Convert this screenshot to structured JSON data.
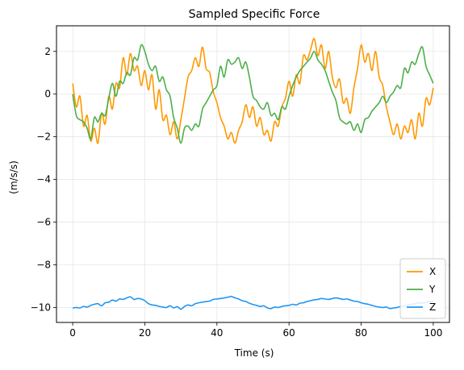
{
  "chart_data": {
    "type": "line",
    "title": "Sampled Specific Force",
    "xlabel": "Time (s)",
    "ylabel": "(m/s/s)",
    "xlim": [
      -4.5,
      104.5
    ],
    "ylim": [
      -10.7,
      3.2
    ],
    "xticks": [
      0,
      20,
      40,
      60,
      80,
      100
    ],
    "xtick_labels": [
      "0",
      "20",
      "40",
      "60",
      "80",
      "100"
    ],
    "yticks": [
      2,
      0,
      -2,
      -4,
      -6,
      -8,
      -10
    ],
    "ytick_labels": [
      "2",
      "0",
      "−2",
      "−4",
      "−6",
      "−8",
      "−10"
    ],
    "grid": true,
    "legend_position": "lower-right",
    "series": [
      {
        "name": "X",
        "color": "#ff9900",
        "x": [
          0,
          1,
          2,
          3,
          4,
          5,
          6,
          7,
          8,
          9,
          10,
          11,
          12,
          13,
          14,
          15,
          16,
          17,
          18,
          19,
          20,
          21,
          22,
          23,
          24,
          25,
          26,
          27,
          28,
          29,
          30,
          31,
          32,
          33,
          34,
          35,
          36,
          37,
          38,
          39,
          40,
          41,
          42,
          43,
          44,
          45,
          46,
          47,
          48,
          49,
          50,
          51,
          52,
          53,
          54,
          55,
          56,
          57,
          58,
          59,
          60,
          61,
          62,
          63,
          64,
          65,
          66,
          67,
          68,
          69,
          70,
          71,
          72,
          73,
          74,
          75,
          76,
          77,
          78,
          79,
          80,
          81,
          82,
          83,
          84,
          85,
          86,
          87,
          88,
          89,
          90,
          91,
          92,
          93,
          94,
          95,
          96,
          97,
          98,
          99,
          100
        ],
        "values": [
          0.5,
          -0.6,
          -0.1,
          -1.5,
          -1.0,
          -2.2,
          -1.6,
          -2.3,
          -0.9,
          -1.4,
          -0.1,
          -0.7,
          0.5,
          0.3,
          1.7,
          0.9,
          1.9,
          1.1,
          1.3,
          0.4,
          1.1,
          0.2,
          0.9,
          -0.7,
          0.2,
          -1.2,
          -1.0,
          -1.9,
          -1.3,
          -2.1,
          -1.2,
          -0.2,
          0.8,
          1.1,
          1.7,
          1.3,
          2.2,
          1.2,
          1.0,
          0.1,
          -0.4,
          -1.1,
          -1.5,
          -2.1,
          -1.8,
          -2.3,
          -1.7,
          -1.3,
          -0.5,
          -1.1,
          -0.6,
          -1.5,
          -1.1,
          -1.9,
          -1.7,
          -2.2,
          -1.3,
          -1.5,
          -0.6,
          -0.2,
          0.6,
          -0.1,
          0.9,
          0.5,
          1.8,
          1.6,
          2.1,
          2.6,
          1.8,
          2.3,
          1.2,
          2.0,
          0.8,
          0.3,
          0.7,
          -0.4,
          -0.2,
          -0.9,
          0.3,
          1.2,
          2.3,
          1.5,
          1.9,
          1.1,
          2.0,
          0.8,
          0.4,
          -0.6,
          -1.3,
          -1.9,
          -1.4,
          -2.1,
          -1.5,
          -1.8,
          -1.2,
          -2.1,
          -0.9,
          -1.5,
          -0.2,
          -0.5,
          0.3
        ]
      },
      {
        "name": "Y",
        "color": "#4daf4a",
        "x": [
          0,
          1,
          2,
          3,
          4,
          5,
          6,
          7,
          8,
          9,
          10,
          11,
          12,
          13,
          14,
          15,
          16,
          17,
          18,
          19,
          20,
          21,
          22,
          23,
          24,
          25,
          26,
          27,
          28,
          29,
          30,
          31,
          32,
          33,
          34,
          35,
          36,
          37,
          38,
          39,
          40,
          41,
          42,
          43,
          44,
          45,
          46,
          47,
          48,
          49,
          50,
          51,
          52,
          53,
          54,
          55,
          56,
          57,
          58,
          59,
          60,
          61,
          62,
          63,
          64,
          65,
          66,
          67,
          68,
          69,
          70,
          71,
          72,
          73,
          74,
          75,
          76,
          77,
          78,
          79,
          80,
          81,
          82,
          83,
          84,
          85,
          86,
          87,
          88,
          89,
          90,
          91,
          92,
          93,
          94,
          95,
          96,
          97,
          98,
          99,
          100
        ],
        "values": [
          0.0,
          -1.0,
          -1.2,
          -1.3,
          -1.6,
          -2.1,
          -1.1,
          -1.3,
          -0.9,
          -1.0,
          -0.2,
          0.5,
          -0.1,
          0.6,
          0.5,
          1.0,
          0.9,
          1.7,
          1.6,
          2.3,
          2.0,
          1.4,
          1.1,
          1.3,
          0.6,
          0.8,
          0.2,
          -0.1,
          -1.1,
          -1.6,
          -2.3,
          -1.6,
          -1.5,
          -1.7,
          -1.4,
          -1.5,
          -0.7,
          -0.4,
          -0.1,
          0.2,
          0.4,
          1.3,
          0.8,
          1.6,
          1.4,
          1.5,
          1.7,
          1.2,
          1.5,
          0.8,
          -0.1,
          -0.3,
          -0.6,
          -0.7,
          -0.4,
          -1.0,
          -0.9,
          -1.2,
          -0.6,
          -0.7,
          -0.1,
          0.4,
          0.8,
          1.1,
          1.3,
          1.5,
          1.7,
          2.0,
          1.6,
          1.4,
          1.1,
          0.6,
          0.1,
          -0.3,
          -1.1,
          -1.3,
          -1.4,
          -1.3,
          -1.7,
          -1.4,
          -1.8,
          -1.2,
          -1.1,
          -0.8,
          -0.6,
          -0.4,
          -0.1,
          -0.4,
          -0.1,
          0.1,
          0.4,
          0.3,
          1.2,
          1.0,
          1.5,
          1.4,
          1.9,
          2.2,
          1.3,
          0.9,
          0.5
        ]
      },
      {
        "name": "Z",
        "color": "#2196f3",
        "x": [
          0,
          1,
          2,
          3,
          4,
          5,
          6,
          7,
          8,
          9,
          10,
          11,
          12,
          13,
          14,
          15,
          16,
          17,
          18,
          19,
          20,
          21,
          22,
          23,
          24,
          25,
          26,
          27,
          28,
          29,
          30,
          31,
          32,
          33,
          34,
          35,
          36,
          37,
          38,
          39,
          40,
          41,
          42,
          43,
          44,
          45,
          46,
          47,
          48,
          49,
          50,
          51,
          52,
          53,
          54,
          55,
          56,
          57,
          58,
          59,
          60,
          61,
          62,
          63,
          64,
          65,
          66,
          67,
          68,
          69,
          70,
          71,
          72,
          73,
          74,
          75,
          76,
          77,
          78,
          79,
          80,
          81,
          82,
          83,
          84,
          85,
          86,
          87,
          88,
          89,
          90,
          91,
          92,
          93,
          94,
          95,
          96,
          97,
          98,
          99,
          100
        ],
        "values": [
          -10.03,
          -10.0,
          -10.02,
          -9.95,
          -9.98,
          -9.9,
          -9.85,
          -9.82,
          -9.92,
          -9.78,
          -9.75,
          -9.65,
          -9.7,
          -9.6,
          -9.62,
          -9.55,
          -9.5,
          -9.62,
          -9.58,
          -9.6,
          -9.68,
          -9.82,
          -9.88,
          -9.9,
          -9.95,
          -9.98,
          -10.0,
          -9.92,
          -10.02,
          -9.96,
          -10.08,
          -9.95,
          -9.88,
          -9.92,
          -9.82,
          -9.78,
          -9.75,
          -9.72,
          -9.7,
          -9.62,
          -9.6,
          -9.58,
          -9.55,
          -9.52,
          -9.48,
          -9.55,
          -9.6,
          -9.68,
          -9.72,
          -9.8,
          -9.86,
          -9.9,
          -9.95,
          -9.92,
          -10.02,
          -10.05,
          -9.98,
          -10.0,
          -9.95,
          -9.92,
          -9.9,
          -9.85,
          -9.88,
          -9.8,
          -9.78,
          -9.72,
          -9.68,
          -9.64,
          -9.62,
          -9.58,
          -9.6,
          -9.62,
          -9.58,
          -9.55,
          -9.58,
          -9.62,
          -9.6,
          -9.65,
          -9.7,
          -9.72,
          -9.78,
          -9.82,
          -9.85,
          -9.9,
          -9.95,
          -9.98,
          -10.0,
          -9.98,
          -10.05,
          -10.02,
          -10.0,
          -9.95,
          -9.92,
          -9.88,
          -9.85,
          -9.82,
          -9.78,
          -9.8,
          -9.75,
          -9.72,
          -9.7
        ]
      }
    ]
  }
}
